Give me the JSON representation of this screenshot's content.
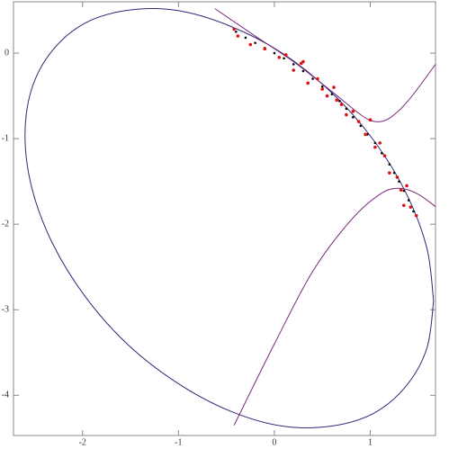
{
  "chart_data": {
    "type": "scatter",
    "xlim": [
      -2.72,
      1.68
    ],
    "ylim": [
      -4.47,
      0.6
    ],
    "xticks": [
      -2,
      -1,
      0,
      1
    ],
    "yticks": [
      0,
      -1,
      -2,
      -3,
      -4
    ],
    "series": [
      {
        "mode": "line",
        "color": "#2a2a7a",
        "x": [
          1.66,
          1.59,
          1.375,
          1.036,
          0.595,
          0.082,
          -0.47,
          -1.02,
          -1.535,
          -1.976,
          -2.315,
          -2.528,
          -2.6,
          -2.528,
          -2.315,
          -1.976,
          -1.535,
          -1.02,
          -0.47,
          0.082,
          0.595,
          1.036,
          1.375,
          1.59,
          1.66
        ],
        "values": [
          -2.9,
          -2.28,
          -1.64,
          -1.02,
          -0.46,
          0.0,
          0.32,
          0.5,
          0.5,
          0.35,
          0.03,
          -0.41,
          -0.96,
          -1.58,
          -2.22,
          -2.84,
          -3.4,
          -3.85,
          -4.18,
          -4.36,
          -4.36,
          -4.21,
          -3.89,
          -3.45,
          -2.9
        ]
      },
      {
        "mode": "line",
        "color": "#7a2a7a",
        "x": [
          -0.62,
          -0.2,
          0.2,
          0.6,
          0.9,
          1.05,
          1.2,
          1.4,
          1.7
        ],
        "values": [
          0.52,
          0.2,
          -0.1,
          -0.45,
          -0.72,
          -0.8,
          -0.76,
          -0.55,
          -0.1
        ]
      },
      {
        "mode": "line",
        "color": "#7a2a7a",
        "x": [
          -0.42,
          0.0,
          0.4,
          0.8,
          1.1,
          1.3,
          1.5,
          1.72
        ],
        "values": [
          -4.35,
          -3.4,
          -2.55,
          -1.95,
          -1.65,
          -1.58,
          -1.65,
          -1.83
        ]
      },
      {
        "mode": "points",
        "color": "#000000",
        "x": [
          -0.4,
          -0.3,
          -0.2,
          -0.1,
          0.0,
          0.1,
          0.2,
          0.3,
          0.4,
          0.5,
          0.6,
          0.68,
          0.75,
          0.82,
          0.9,
          0.97,
          1.05,
          1.12,
          1.2,
          1.25,
          1.3,
          1.35,
          1.4,
          1.45
        ],
        "values": [
          0.25,
          0.18,
          0.12,
          0.06,
          0.0,
          -0.06,
          -0.13,
          -0.21,
          -0.3,
          -0.39,
          -0.48,
          -0.56,
          -0.65,
          -0.75,
          -0.85,
          -0.95,
          -1.05,
          -1.17,
          -1.3,
          -1.4,
          -1.5,
          -1.61,
          -1.72,
          -1.85
        ]
      },
      {
        "mode": "points",
        "color": "#dd1111",
        "x": [
          -0.42,
          -0.38,
          -0.25,
          -0.1,
          0.05,
          0.12,
          0.2,
          0.28,
          0.35,
          0.45,
          0.5,
          0.55,
          0.62,
          0.7,
          0.75,
          0.82,
          0.88,
          0.95,
          1.0,
          1.05,
          1.1,
          1.15,
          1.2,
          1.28,
          1.32,
          1.38,
          1.35,
          1.42,
          1.48,
          0.3,
          0.65
        ],
        "values": [
          0.28,
          0.2,
          0.1,
          0.05,
          -0.05,
          -0.02,
          -0.2,
          -0.12,
          -0.35,
          -0.3,
          -0.42,
          -0.5,
          -0.4,
          -0.6,
          -0.72,
          -0.68,
          -0.8,
          -0.95,
          -0.78,
          -1.1,
          -1.05,
          -1.2,
          -1.4,
          -1.45,
          -1.6,
          -1.55,
          -1.78,
          -1.8,
          -1.9,
          -0.1,
          -0.55
        ]
      }
    ]
  }
}
